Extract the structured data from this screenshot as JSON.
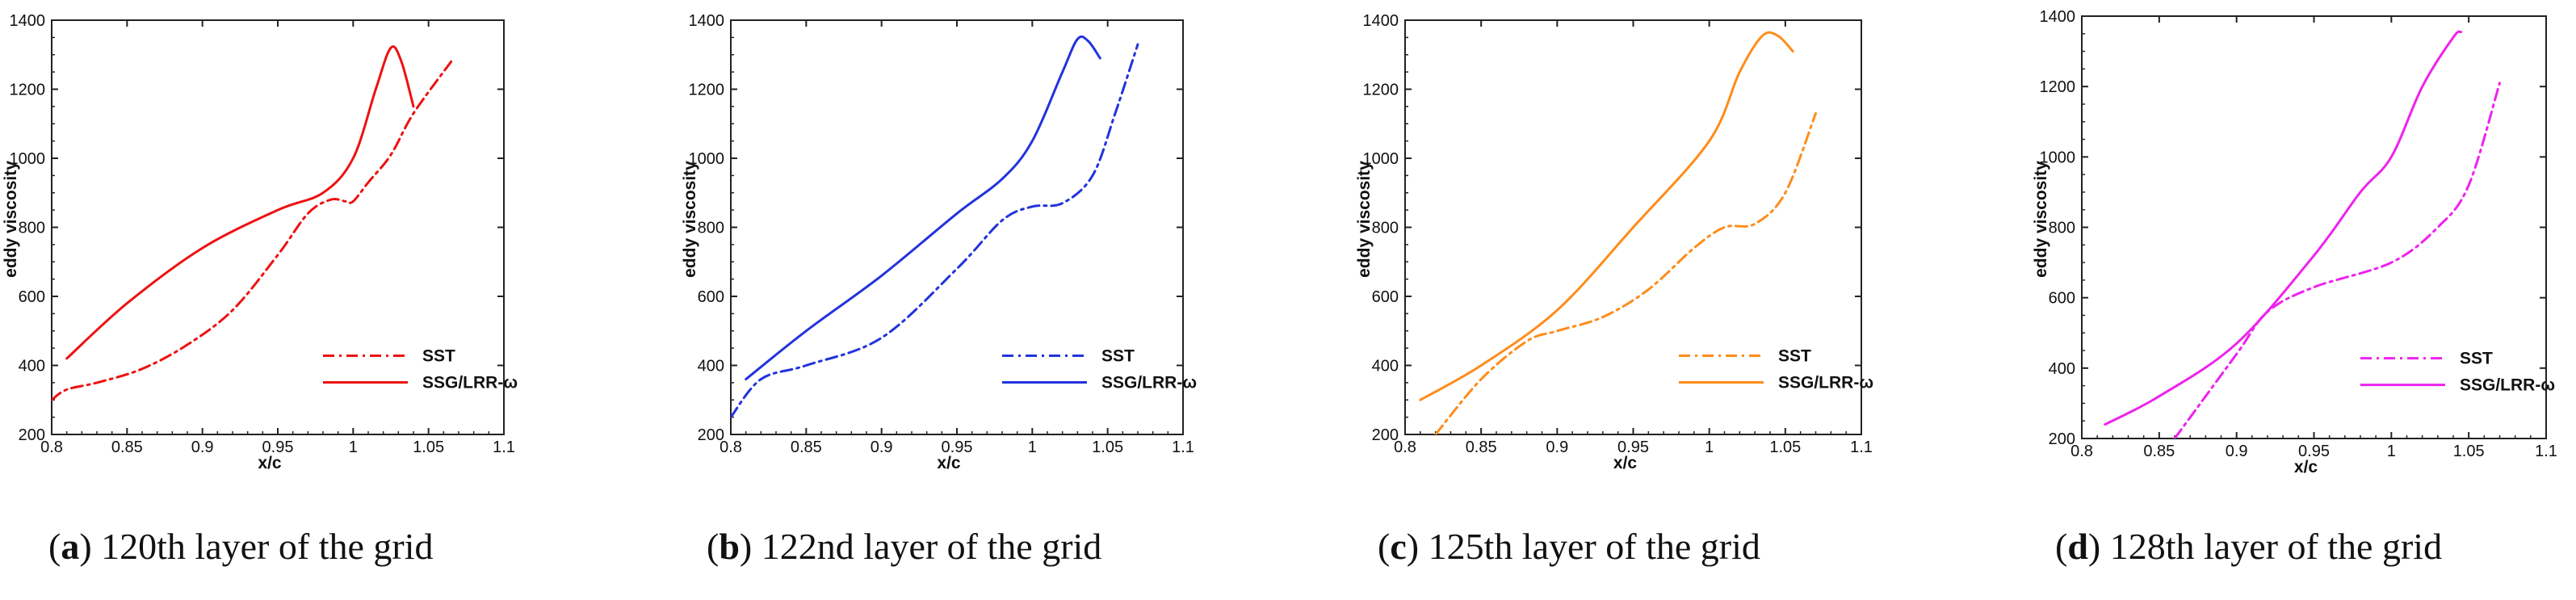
{
  "chart_data": [
    {
      "type": "line",
      "panel_letter": "a",
      "caption": "120th layer of the grid",
      "color": "#ee1111",
      "xlabel": "x/c",
      "ylabel": "eddy viscosity",
      "xlim": [
        0.8,
        1.1
      ],
      "ylim": [
        200,
        1400
      ],
      "xticks": [
        "0.8",
        "0.85",
        "0.9",
        "0.95",
        "1",
        "1.05",
        "1.1"
      ],
      "yticks": [
        "200",
        "400",
        "600",
        "800",
        "1000",
        "1200",
        "1400"
      ],
      "series": [
        {
          "name": "SST",
          "style": "dashdot",
          "x": [
            0.8,
            0.81,
            0.83,
            0.86,
            0.89,
            0.92,
            0.95,
            0.97,
            0.985,
            0.995,
            1.0,
            1.01,
            1.025,
            1.04,
            1.065
          ],
          "y": [
            300,
            330,
            350,
            390,
            460,
            560,
            720,
            840,
            880,
            875,
            875,
            930,
            1010,
            1130,
            1280
          ]
        },
        {
          "name": "SSG/LRR-ω",
          "style": "solid",
          "x": [
            0.81,
            0.85,
            0.9,
            0.95,
            0.98,
            1.0,
            1.015,
            1.025,
            1.032,
            1.04
          ],
          "y": [
            420,
            580,
            740,
            850,
            900,
            1000,
            1200,
            1320,
            1280,
            1150
          ]
        }
      ]
    },
    {
      "type": "line",
      "panel_letter": "b",
      "caption": "122nd layer of the grid",
      "color": "#2233dd",
      "xlabel": "x/c",
      "ylabel": "eddy viscosity",
      "xlim": [
        0.8,
        1.1
      ],
      "ylim": [
        200,
        1400
      ],
      "xticks": [
        "0.8",
        "0.85",
        "0.9",
        "0.95",
        "1",
        "1.05",
        "1.1"
      ],
      "yticks": [
        "200",
        "400",
        "600",
        "800",
        "1000",
        "1200",
        "1400"
      ],
      "series": [
        {
          "name": "SST",
          "style": "dashdot",
          "x": [
            0.8,
            0.82,
            0.85,
            0.9,
            0.95,
            0.98,
            1.0,
            1.02,
            1.04,
            1.055,
            1.07
          ],
          "y": [
            250,
            360,
            400,
            480,
            680,
            820,
            860,
            870,
            950,
            1130,
            1330
          ]
        },
        {
          "name": "SSG/LRR-ω",
          "style": "solid",
          "x": [
            0.81,
            0.85,
            0.9,
            0.95,
            0.98,
            1.0,
            1.02,
            1.03,
            1.037,
            1.045
          ],
          "y": [
            360,
            500,
            660,
            840,
            940,
            1050,
            1250,
            1345,
            1340,
            1290
          ]
        }
      ]
    },
    {
      "type": "line",
      "panel_letter": "c",
      "caption": "125th layer of the grid",
      "color": "#ff8c1a",
      "xlabel": "x/c",
      "ylabel": "eddy viscosity",
      "xlim": [
        0.8,
        1.1
      ],
      "ylim": [
        200,
        1400
      ],
      "xticks": [
        "0.8",
        "0.85",
        "0.9",
        "0.95",
        "1",
        "1.05",
        "1.1"
      ],
      "yticks": [
        "200",
        "400",
        "600",
        "800",
        "1000",
        "1200",
        "1400"
      ],
      "series": [
        {
          "name": "SST",
          "style": "dashdot",
          "x": [
            0.82,
            0.85,
            0.88,
            0.9,
            0.93,
            0.96,
            0.99,
            1.01,
            1.03,
            1.05,
            1.07
          ],
          "y": [
            200,
            360,
            470,
            500,
            540,
            620,
            740,
            800,
            810,
            900,
            1130
          ]
        },
        {
          "name": "SSG/LRR-ω",
          "style": "solid",
          "x": [
            0.81,
            0.85,
            0.9,
            0.95,
            1.0,
            1.02,
            1.035,
            1.045,
            1.055
          ],
          "y": [
            300,
            400,
            560,
            800,
            1050,
            1250,
            1355,
            1355,
            1310
          ]
        }
      ]
    },
    {
      "type": "line",
      "panel_letter": "d",
      "caption": "128th layer of the grid",
      "color": "#ee22ee",
      "xlabel": "x/c",
      "ylabel": "eddy viscosity",
      "xlim": [
        0.8,
        1.1
      ],
      "ylim": [
        200,
        1400
      ],
      "xticks": [
        "0.8",
        "0.85",
        "0.9",
        "0.95",
        "1",
        "1.05",
        "1.1"
      ],
      "yticks": [
        "200",
        "400",
        "600",
        "800",
        "1000",
        "1200",
        "1400"
      ],
      "series": [
        {
          "name": "SST",
          "style": "dashdot",
          "x": [
            0.86,
            0.9,
            0.92,
            0.95,
            1.0,
            1.03,
            1.05,
            1.07
          ],
          "y": [
            200,
            440,
            560,
            630,
            700,
            800,
            920,
            1210
          ]
        },
        {
          "name": "SSG/LRR-ω",
          "style": "solid",
          "x": [
            0.815,
            0.85,
            0.9,
            0.95,
            0.98,
            1.0,
            1.02,
            1.04,
            1.045
          ],
          "y": [
            240,
            320,
            470,
            720,
            900,
            1000,
            1200,
            1340,
            1355
          ]
        }
      ]
    }
  ]
}
